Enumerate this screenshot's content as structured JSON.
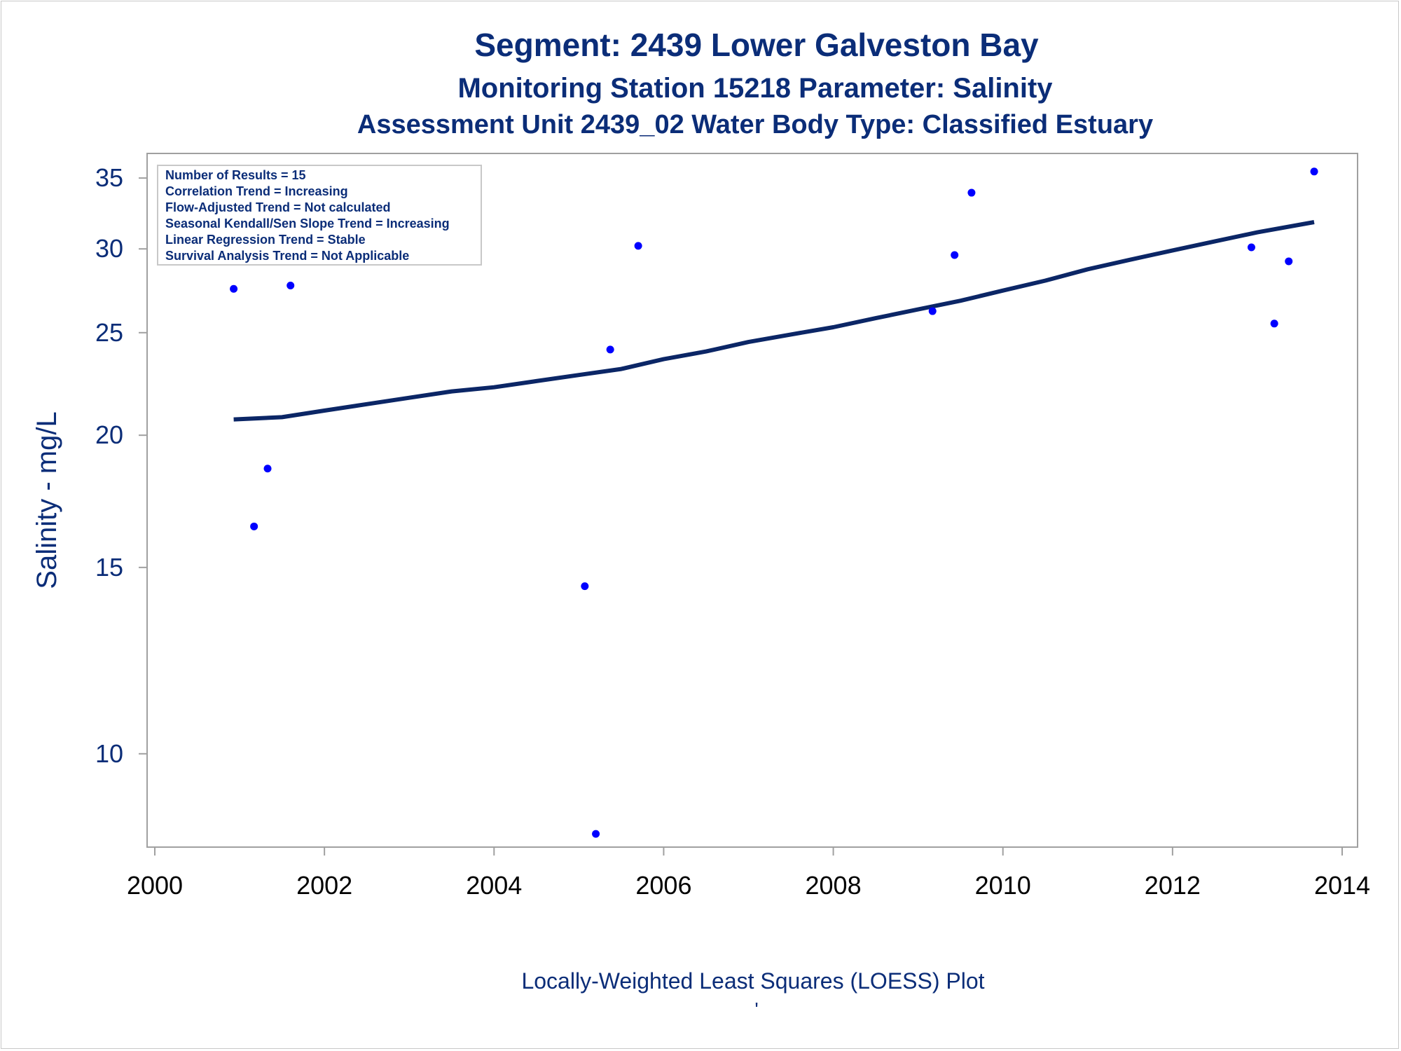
{
  "titles": {
    "line1": "Segment: 2439  Lower Galveston Bay",
    "line2": "Monitoring Station 15218 Parameter: Salinity",
    "line3": "Assessment Unit 2439_02   Water Body Type: Classified Estuary"
  },
  "info_box": {
    "lines": [
      "Number of Results = 15",
      "Correlation Trend = Increasing",
      "Flow-Adjusted Trend = Not calculated",
      "Seasonal Kendall/Sen Slope Trend = Increasing",
      "Linear Regression Trend = Stable",
      "Survival Analysis Trend = Not Applicable"
    ]
  },
  "footnote": "Locally-Weighted Least Squares (LOESS) Plot",
  "footnote_mark": "'",
  "colors": {
    "title": "#0b2d78",
    "points": "#0000ff",
    "loess_line": "#0b2666",
    "axis_text": "#0b2d78",
    "frame": "#a0a0a0"
  },
  "chart_data": {
    "type": "scatter",
    "title": "Segment: 2439  Lower Galveston Bay",
    "xlabel": "",
    "ylabel": "Salinity - mg/L",
    "x_scale": "linear (year)",
    "y_scale": "log",
    "xlim": [
      2000,
      2014
    ],
    "ylim": [
      8.3,
      36.2
    ],
    "x_ticks": [
      2000,
      2002,
      2004,
      2006,
      2008,
      2010,
      2012,
      2014
    ],
    "y_ticks": [
      10,
      15,
      20,
      25,
      30,
      35
    ],
    "grid": false,
    "series": [
      {
        "role": "observations",
        "x": [
          2000.93,
          2001.17,
          2001.33,
          2001.6,
          2005.07,
          2005.2,
          2005.37,
          2005.7,
          2009.17,
          2009.43,
          2009.63,
          2012.93,
          2013.2,
          2013.37,
          2013.67
        ],
        "y": [
          27.5,
          16.4,
          18.6,
          27.7,
          14.4,
          8.4,
          24.1,
          30.2,
          26.2,
          29.6,
          33.9,
          30.1,
          25.5,
          29.2,
          35.5
        ]
      },
      {
        "role": "loess",
        "type": "line",
        "x": [
          2000.93,
          2001.5,
          2002.0,
          2002.5,
          2003.0,
          2003.5,
          2004.0,
          2004.5,
          2005.0,
          2005.5,
          2006.0,
          2006.5,
          2007.0,
          2007.5,
          2008.0,
          2008.5,
          2009.0,
          2009.5,
          2010.0,
          2010.5,
          2011.0,
          2011.5,
          2012.0,
          2012.5,
          2013.0,
          2013.67
        ],
        "y": [
          20.7,
          20.8,
          21.1,
          21.4,
          21.7,
          22.0,
          22.2,
          22.5,
          22.8,
          23.1,
          23.6,
          24.0,
          24.5,
          24.9,
          25.3,
          25.8,
          26.3,
          26.8,
          27.4,
          28.0,
          28.7,
          29.3,
          29.9,
          30.5,
          31.1,
          31.8
        ]
      }
    ]
  }
}
